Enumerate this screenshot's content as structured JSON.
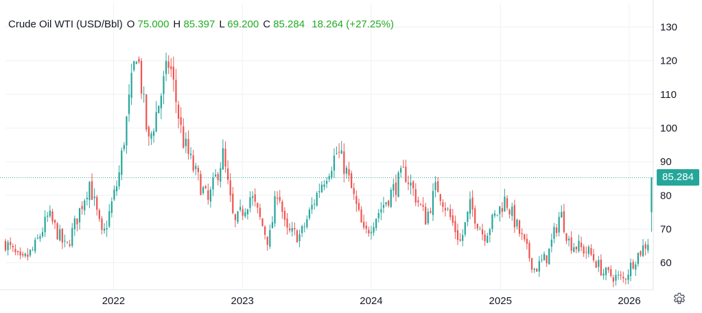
{
  "legend": {
    "title": "Crude Oil WTI (USD/Bbl)",
    "open_key": "O",
    "open": "75.000",
    "high_key": "H",
    "high": "85.397",
    "low_key": "L",
    "low": "69.200",
    "close_key": "C",
    "close": "85.284",
    "change": "18.264 (+27.25%)"
  },
  "last_price_label": "85.284",
  "settings_icon": "gear-icon",
  "colors": {
    "up": "#26a69a",
    "down": "#ef5350",
    "legend_values": "#22ab22",
    "grid": "#eef0f3"
  },
  "chart_data": {
    "type": "candlestick",
    "title": "Crude Oil WTI (USD/Bbl)",
    "xlabel": "",
    "ylabel": "",
    "x_ticks": [
      "2022",
      "2023",
      "2024",
      "2025",
      "2026"
    ],
    "y_ticks": [
      60,
      70,
      80,
      90,
      100,
      110,
      120,
      130
    ],
    "ylim": [
      52,
      137
    ],
    "xlim": [
      "2021-03-01",
      "2026-03-10"
    ],
    "grid": true,
    "last_value": 85.284,
    "close_path": [
      [
        "2021-03-01",
        66
      ],
      [
        "2021-04-15",
        60
      ],
      [
        "2021-05-20",
        64
      ],
      [
        "2021-07-01",
        74
      ],
      [
        "2021-08-20",
        64
      ],
      [
        "2021-10-25",
        84
      ],
      [
        "2021-12-01",
        67
      ],
      [
        "2022-01-15",
        85
      ],
      [
        "2022-03-08",
        124
      ],
      [
        "2022-04-10",
        95
      ],
      [
        "2022-06-08",
        120
      ],
      [
        "2022-07-15",
        97
      ],
      [
        "2022-08-15",
        88
      ],
      [
        "2022-09-26",
        78
      ],
      [
        "2022-11-07",
        92
      ],
      [
        "2022-12-09",
        71
      ],
      [
        "2023-01-25",
        80
      ],
      [
        "2023-03-17",
        66
      ],
      [
        "2023-04-12",
        83
      ],
      [
        "2023-05-04",
        69
      ],
      [
        "2023-06-15",
        68
      ],
      [
        "2023-08-10",
        83
      ],
      [
        "2023-09-27",
        93
      ],
      [
        "2023-10-20",
        88
      ],
      [
        "2023-12-13",
        68
      ],
      [
        "2024-01-15",
        74
      ],
      [
        "2024-04-05",
        87
      ],
      [
        "2024-06-04",
        73
      ],
      [
        "2024-07-05",
        83
      ],
      [
        "2024-09-10",
        66
      ],
      [
        "2024-10-08",
        77
      ],
      [
        "2024-11-15",
        68
      ],
      [
        "2025-01-15",
        79
      ],
      [
        "2025-04-08",
        58
      ],
      [
        "2025-05-15",
        62
      ],
      [
        "2025-06-20",
        75
      ],
      [
        "2025-07-15",
        66
      ],
      [
        "2025-09-10",
        63
      ],
      [
        "2025-10-20",
        57
      ],
      [
        "2025-12-16",
        55
      ],
      [
        "2026-01-15",
        61
      ],
      [
        "2026-02-27",
        67
      ]
    ],
    "last_candle": {
      "date": "2026-03-05",
      "open": 75.0,
      "high": 85.397,
      "low": 69.2,
      "close": 85.284
    }
  }
}
